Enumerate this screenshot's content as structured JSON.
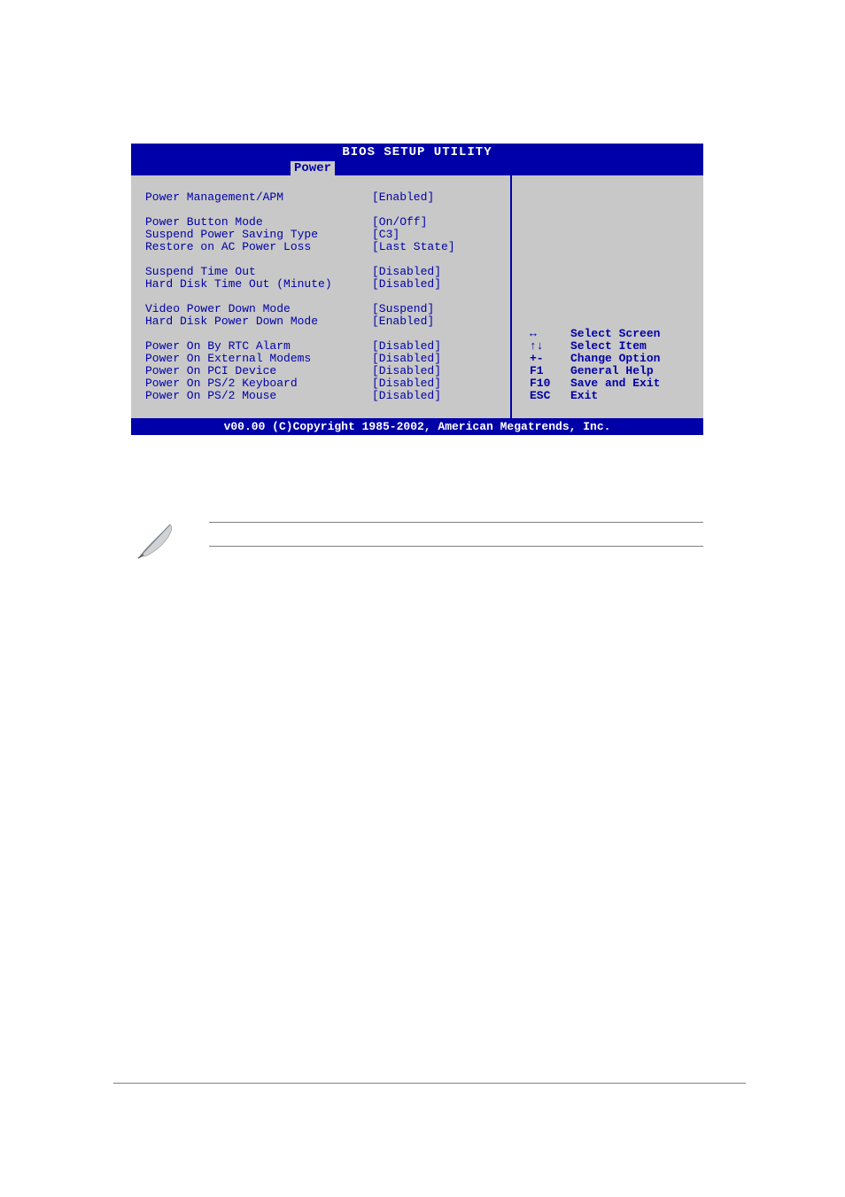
{
  "bios": {
    "title": "BIOS SETUP UTILITY",
    "tab": "Power",
    "footer": "v00.00 (C)Copyright 1985-2002, American Megatrends, Inc.",
    "colors": {
      "bar_bg": "#0000a8",
      "bar_fg": "#ffffff",
      "body_bg": "#c8c8c8",
      "text": "#0000a8"
    },
    "settings": [
      {
        "label": "Power Management/APM",
        "value": "[Enabled]"
      },
      {
        "spacer": true
      },
      {
        "label": "Power Button Mode",
        "value": "[On/Off]"
      },
      {
        "label": "Suspend Power Saving Type",
        "value": "[C3]"
      },
      {
        "label": "Restore on AC Power Loss",
        "value": "[Last State]"
      },
      {
        "spacer": true
      },
      {
        "label": "Suspend Time Out",
        "value": "[Disabled]"
      },
      {
        "label": "Hard Disk Time Out (Minute)",
        "value": "[Disabled]"
      },
      {
        "spacer": true
      },
      {
        "label": "Video Power Down Mode",
        "value": "[Suspend]"
      },
      {
        "label": "Hard Disk Power Down Mode",
        "value": "[Enabled]"
      },
      {
        "spacer": true
      },
      {
        "label": "Power On By RTC Alarm",
        "value": "[Disabled]"
      },
      {
        "label": "Power On External Modems",
        "value": "[Disabled]"
      },
      {
        "label": "Power On PCI Device",
        "value": "[Disabled]"
      },
      {
        "label": "Power On PS/2 Keyboard",
        "value": "[Disabled]"
      },
      {
        "label": "Power On PS/2 Mouse",
        "value": "[Disabled]"
      }
    ],
    "nav": [
      {
        "key": "↔",
        "desc": "Select Screen"
      },
      {
        "key": "↑↓",
        "desc": "Select Item"
      },
      {
        "key": "+-",
        "desc": "Change Option"
      },
      {
        "key": "F1",
        "desc": "General Help"
      },
      {
        "key": "F10",
        "desc": "Save and Exit"
      },
      {
        "key": "ESC",
        "desc": "Exit"
      }
    ]
  }
}
